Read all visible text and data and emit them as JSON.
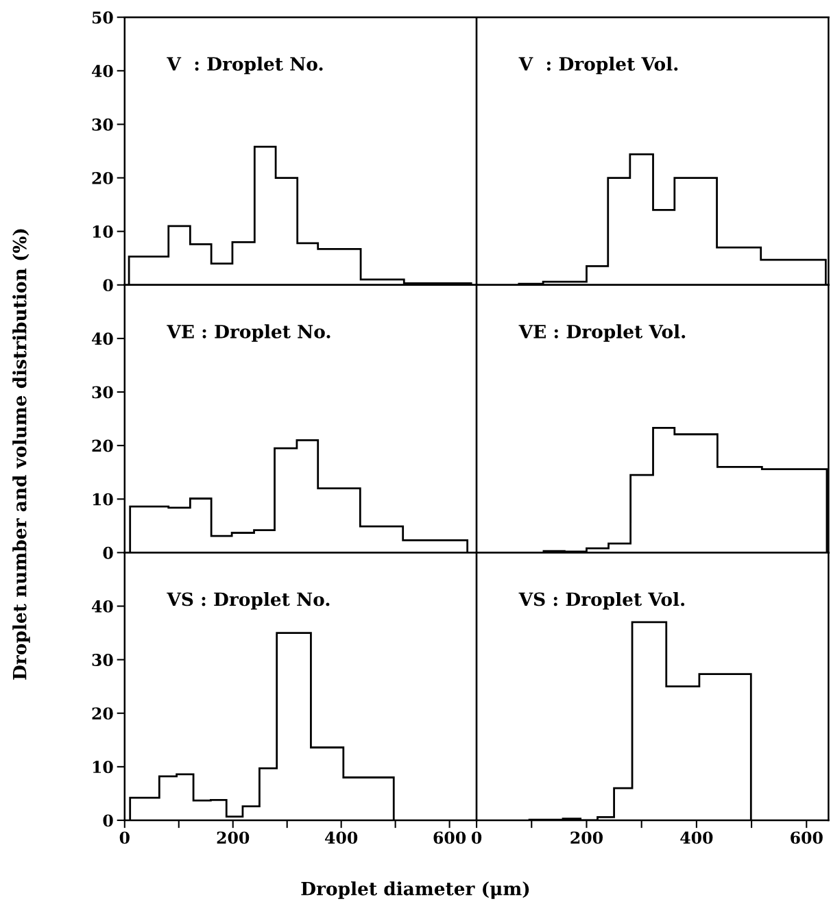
{
  "chart_data": [
    {
      "type": "histogram",
      "title": "V  : Droplet No.",
      "color": "#000000",
      "bins": [
        8,
        81,
        121,
        160,
        199,
        240,
        279,
        319,
        357,
        436,
        516,
        640
      ],
      "values": [
        5.3,
        11.0,
        7.6,
        4.0,
        8.0,
        25.8,
        20.0,
        7.8,
        6.7,
        1.0,
        0.3
      ],
      "xlim": [
        0,
        650
      ],
      "ylim": [
        0,
        50
      ],
      "yticks": [
        0,
        10,
        20,
        30,
        40,
        50
      ],
      "tick_labels": "y"
    },
    {
      "type": "histogram",
      "title": "V  : Droplet Vol.",
      "color": "#000000",
      "bins": [
        77,
        121,
        200,
        239,
        279,
        321,
        360,
        437,
        517,
        635
      ],
      "values": [
        0.2,
        0.6,
        3.5,
        20.0,
        24.4,
        14.0,
        20.0,
        7.0,
        4.7
      ],
      "xlim": [
        0,
        640
      ],
      "ylim": [
        0,
        50
      ],
      "tick_labels": false
    },
    {
      "type": "histogram",
      "title": "VE : Droplet No.",
      "ylabel": "Droplet number and volume distribution (%)",
      "color": "#000000",
      "bins": [
        10,
        81,
        121,
        160,
        198,
        239,
        277,
        318,
        357,
        435,
        514,
        633
      ],
      "values": [
        8.6,
        8.4,
        10.1,
        3.1,
        3.7,
        4.2,
        19.5,
        21.0,
        12.0,
        4.9,
        2.3
      ],
      "xlim": [
        0,
        650
      ],
      "ylim": [
        0,
        50
      ],
      "yticks": [
        0,
        10,
        20,
        30,
        40
      ],
      "tick_labels": "y"
    },
    {
      "type": "histogram",
      "title": "VE : Droplet Vol.",
      "color": "#000000",
      "bins": [
        122,
        160,
        200,
        240,
        280,
        321,
        360,
        438,
        519,
        637
      ],
      "values": [
        0.3,
        0.2,
        0.8,
        1.7,
        14.5,
        23.3,
        22.1,
        16.0,
        15.6
      ],
      "xlim": [
        0,
        640
      ],
      "ylim": [
        0,
        50
      ],
      "tick_labels": false
    },
    {
      "type": "histogram",
      "title": "VS : Droplet No.",
      "xlabel": "Droplet diameter (μm)",
      "color": "#000000",
      "bins": [
        10,
        64,
        96,
        127,
        159,
        188,
        218,
        249,
        281,
        344,
        404,
        497
      ],
      "values": [
        4.2,
        8.2,
        8.6,
        3.7,
        3.8,
        0.7,
        2.6,
        9.7,
        35.0,
        13.6,
        8.0
      ],
      "xlim": [
        0,
        650
      ],
      "ylim": [
        0,
        50
      ],
      "xticks": [
        0,
        {
          "value": 100,
          "label": null
        },
        200,
        {
          "value": 300,
          "label": null
        },
        400,
        {
          "value": 500,
          "label": null
        },
        600
      ],
      "yticks": [
        0,
        10,
        20,
        30,
        40
      ]
    },
    {
      "type": "histogram",
      "title": "VS : Droplet Vol.",
      "color": "#000000",
      "bins": [
        96,
        157,
        189,
        220,
        250,
        283,
        345,
        405,
        499
      ],
      "values": [
        0.1,
        0.3,
        0.0,
        0.6,
        6.0,
        37.0,
        25.0,
        27.3
      ],
      "xlim": [
        0,
        640
      ],
      "ylim": [
        0,
        50
      ],
      "xticks": [
        0,
        {
          "value": 100,
          "label": null
        },
        200,
        {
          "value": 300,
          "label": null
        },
        400,
        {
          "value": 500,
          "label": null
        },
        600
      ],
      "tick_labels": "x"
    }
  ]
}
